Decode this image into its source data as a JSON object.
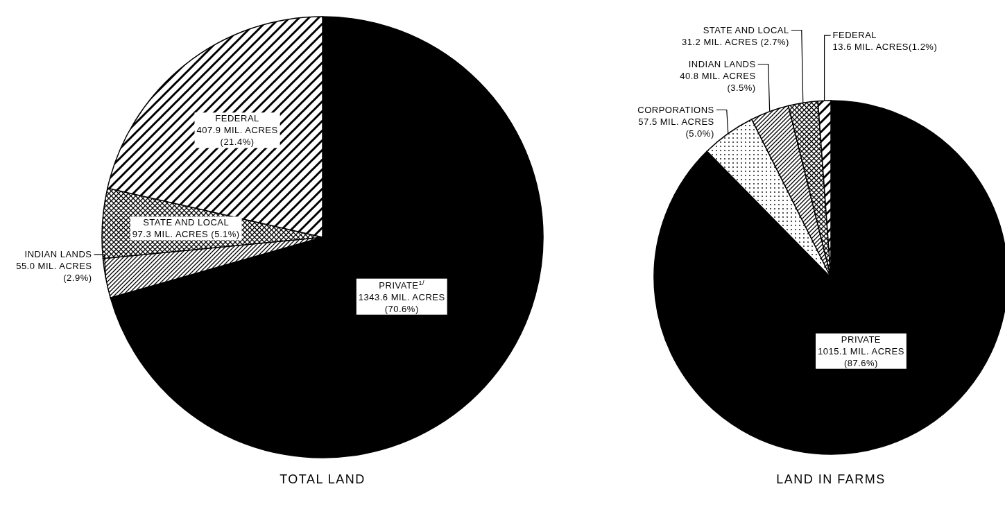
{
  "chart_data": [
    {
      "type": "pie",
      "title": "TOTAL LAND",
      "categories": [
        "PRIVATE$^{1/}$",
        "INDIAN LANDS",
        "STATE AND LOCAL",
        "FEDERAL"
      ],
      "values": [
        1343.6,
        55.0,
        97.3,
        407.9
      ],
      "value_labels": [
        "1343.6 MIL. ACRES\n(70.6%)",
        "55.0 MIL. ACRES\n(2.9%)",
        "97.3 MIL. ACRES   (5.1%)",
        "407.9 MIL. ACRES\n(21.4%)"
      ],
      "colors": [
        "#000000",
        "#000000",
        "#000000",
        "#000000"
      ]
    },
    {
      "type": "pie",
      "title": "LAND IN FARMS",
      "categories": [
        "PRIVATE",
        "CORPORATIONS",
        "INDIAN LANDS",
        "STATE AND LOCAL",
        "FEDERAL"
      ],
      "values": [
        1015.1,
        57.5,
        40.8,
        31.2,
        13.6
      ],
      "value_labels": [
        "1015.1 MIL. ACRES\n(87.6%)",
        "57.5 MIL. ACRES\n(5.0%)",
        "40.8 MIL. ACRES\n(3.5%)",
        "31.2 MIL. ACRES (2.7%)",
        "13.6 MIL. ACRES(1.2%)"
      ],
      "colors": [
        "#000000",
        "#000000",
        "#000000",
        "#000000",
        "#000000"
      ]
    }
  ]
}
